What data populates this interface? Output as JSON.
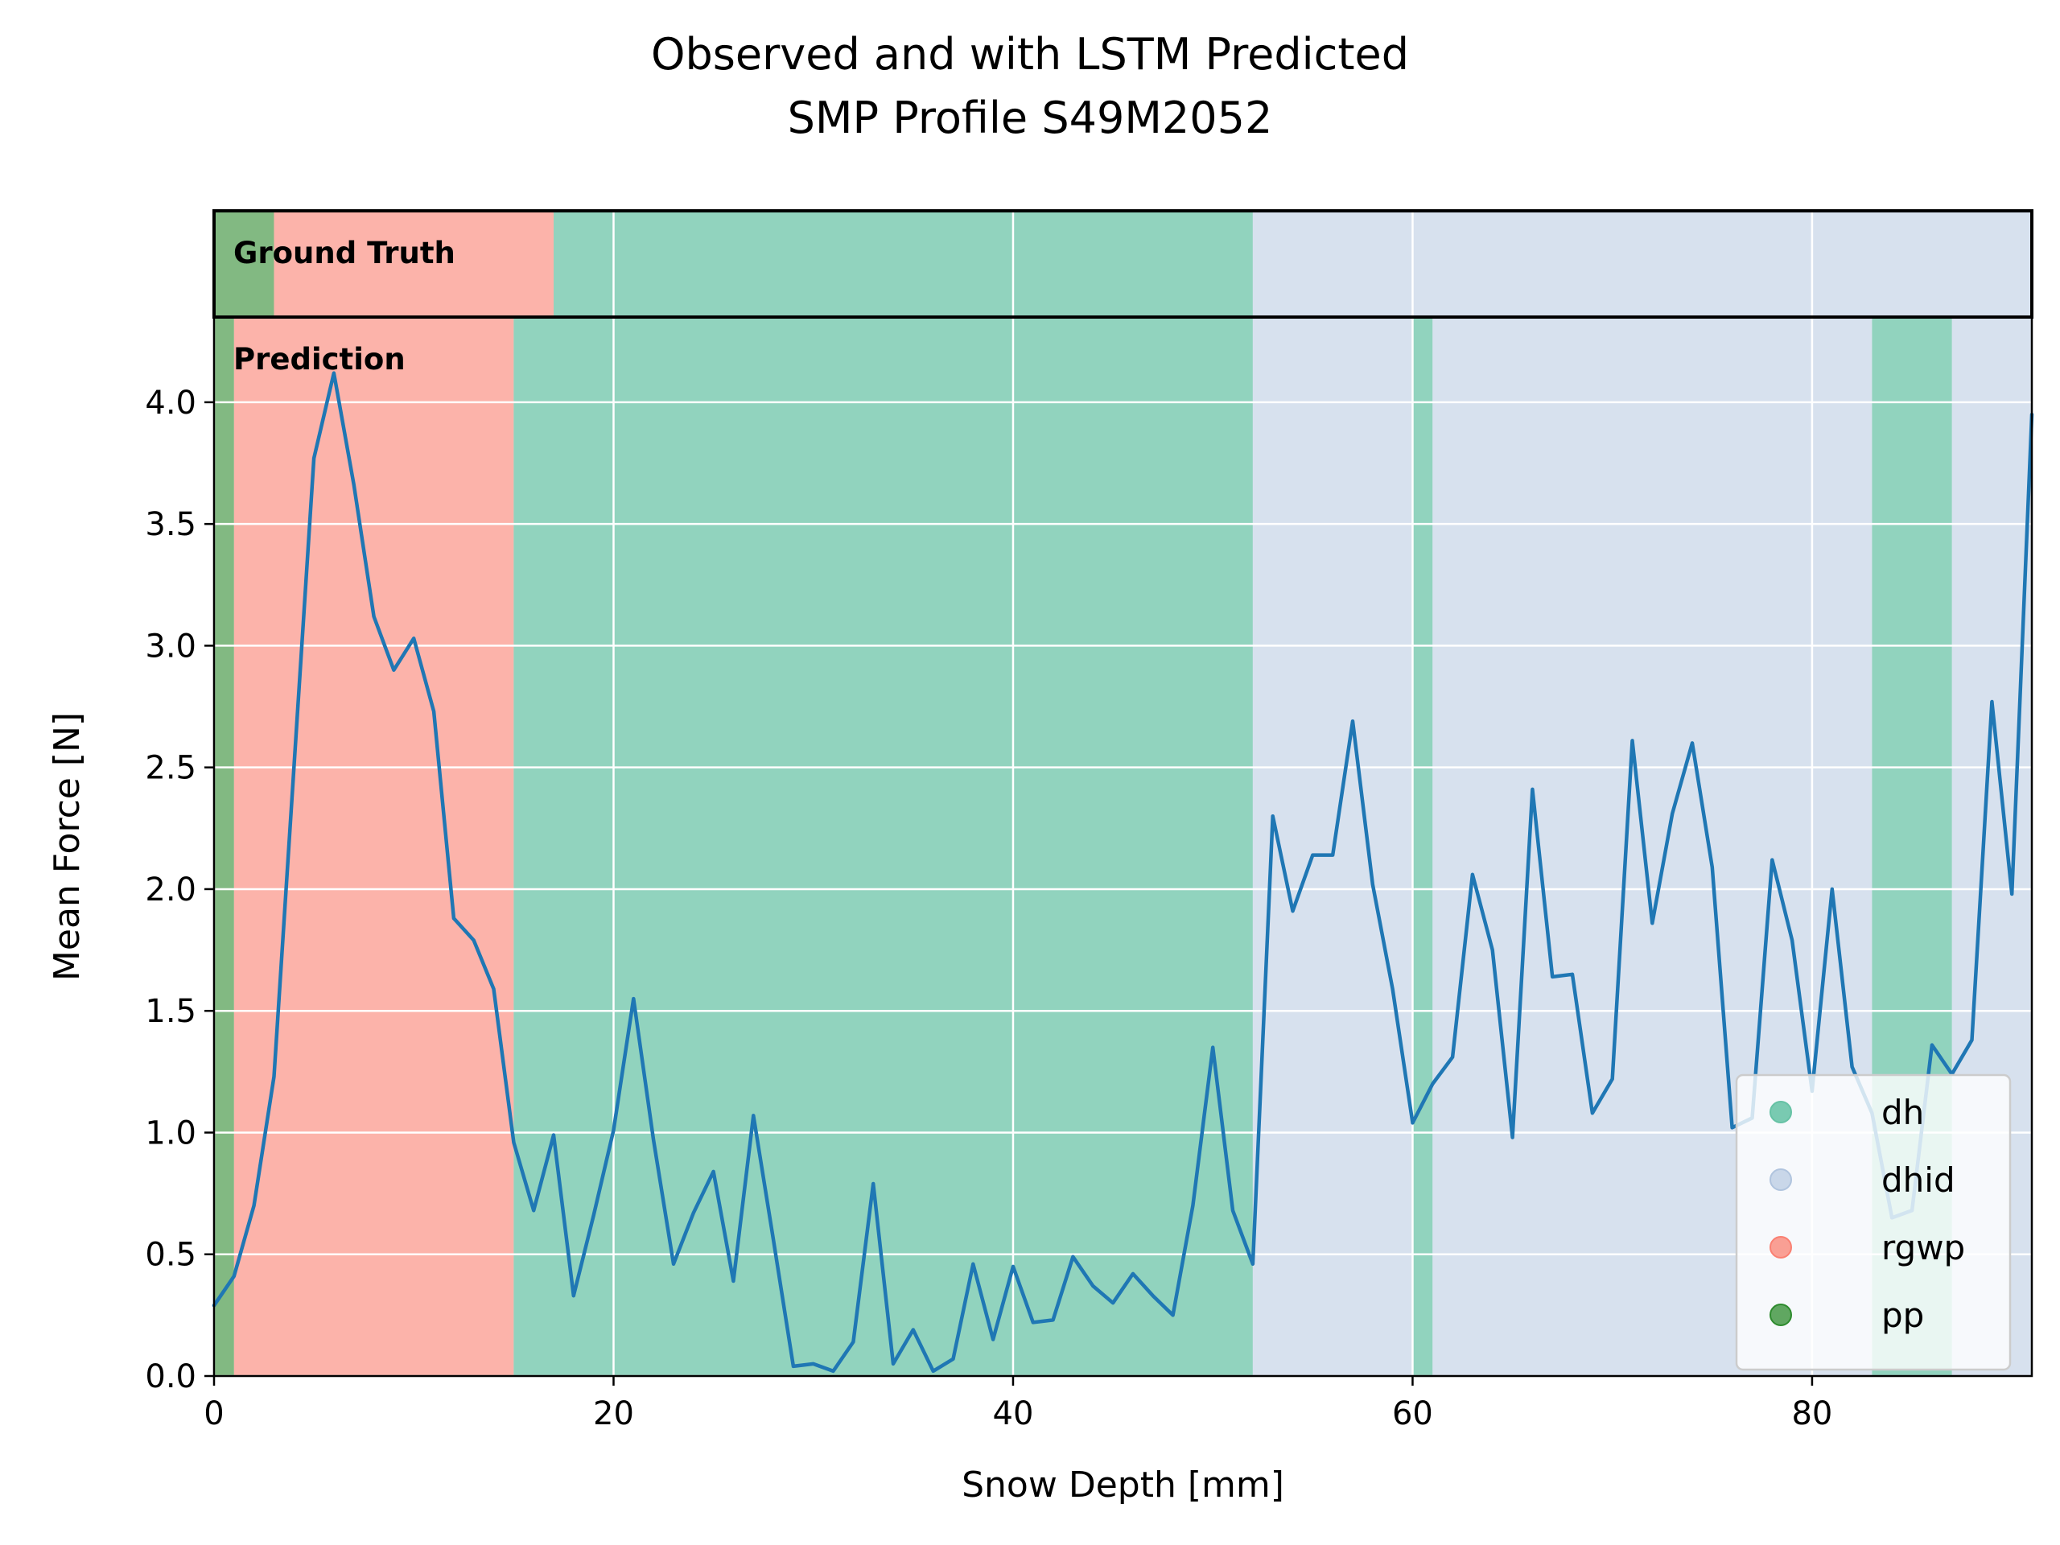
{
  "chart_data": {
    "type": "line",
    "title": "Observed and with LSTM Predicted",
    "subtitle": "SMP Profile S49M2052",
    "xlabel": "Snow Depth [mm]",
    "ylabel": "Mean Force [N]",
    "xlim": [
      0,
      91
    ],
    "ylim": [
      0,
      4.35
    ],
    "xticks": [
      "0",
      "20",
      "40",
      "60",
      "80"
    ],
    "yticks": [
      "0.0",
      "0.5",
      "1.0",
      "1.5",
      "2.0",
      "2.5",
      "3.0",
      "3.5",
      "4.0"
    ],
    "grid": true,
    "legend_position": "lower-right",
    "ground_truth_label": "Ground Truth",
    "prediction_label": "Prediction",
    "classes": [
      {
        "name": "dh",
        "color": "#66c2a5",
        "opacity": 0.72
      },
      {
        "name": "dhid",
        "color": "#b0c4de",
        "opacity": 0.5
      },
      {
        "name": "rgwp",
        "color": "#fa8072",
        "opacity": 0.6
      },
      {
        "name": "pp",
        "color": "#2e8b2e",
        "opacity": 0.6
      }
    ],
    "ground_truth": [
      {
        "label": "pp",
        "start": 0,
        "end": 3
      },
      {
        "label": "rgwp",
        "start": 3,
        "end": 17
      },
      {
        "label": "dh",
        "start": 17,
        "end": 52
      },
      {
        "label": "dhid",
        "start": 52,
        "end": 91
      }
    ],
    "prediction": [
      {
        "label": "pp",
        "start": 0,
        "end": 1
      },
      {
        "label": "rgwp",
        "start": 1,
        "end": 15
      },
      {
        "label": "dh",
        "start": 15,
        "end": 52
      },
      {
        "label": "dhid",
        "start": 52,
        "end": 60
      },
      {
        "label": "dh",
        "start": 60,
        "end": 61
      },
      {
        "label": "dhid",
        "start": 61,
        "end": 83
      },
      {
        "label": "dh",
        "start": 83,
        "end": 87
      },
      {
        "label": "dhid",
        "start": 87,
        "end": 91
      }
    ],
    "series": [
      {
        "color": "#1f77b4",
        "x": [
          0,
          1,
          2,
          3,
          4,
          5,
          6,
          7,
          8,
          9,
          10,
          11,
          12,
          13,
          14,
          15,
          16,
          17,
          18,
          19,
          20,
          21,
          22,
          23,
          24,
          25,
          26,
          27,
          28,
          29,
          30,
          31,
          32,
          33,
          34,
          35,
          36,
          37,
          38,
          39,
          40,
          41,
          42,
          43,
          44,
          45,
          46,
          47,
          48,
          49,
          50,
          51,
          52,
          53,
          54,
          55,
          56,
          57,
          58,
          59,
          60,
          61,
          62,
          63,
          64,
          65,
          66,
          67,
          68,
          69,
          70,
          71,
          72,
          73,
          74,
          75,
          76,
          77,
          78,
          79,
          80,
          81,
          82,
          83,
          84,
          85,
          86,
          87,
          88,
          89,
          90,
          91
        ],
        "y": [
          0.29,
          0.41,
          0.7,
          1.23,
          2.5,
          3.77,
          4.12,
          3.66,
          3.12,
          2.9,
          3.03,
          2.73,
          1.88,
          1.79,
          1.59,
          0.96,
          0.68,
          0.99,
          0.33,
          0.66,
          1.01,
          1.55,
          0.97,
          0.46,
          0.67,
          0.84,
          0.39,
          1.07,
          0.56,
          0.04,
          0.05,
          0.02,
          0.14,
          0.79,
          0.05,
          0.19,
          0.02,
          0.07,
          0.46,
          0.15,
          0.45,
          0.22,
          0.23,
          0.49,
          0.37,
          0.3,
          0.42,
          0.33,
          0.25,
          0.7,
          1.35,
          0.68,
          0.46,
          2.3,
          1.91,
          2.14,
          2.14,
          2.69,
          2.02,
          1.59,
          1.04,
          1.2,
          1.31,
          2.06,
          1.75,
          0.98,
          2.41,
          1.64,
          1.65,
          1.08,
          1.22,
          2.61,
          1.86,
          2.31,
          2.6,
          2.09,
          1.02,
          1.06,
          2.12,
          1.79,
          1.17,
          2.0,
          1.27,
          1.08,
          0.65,
          0.68,
          1.36,
          1.24,
          1.38,
          2.77,
          1.98,
          3.95
        ]
      }
    ]
  }
}
